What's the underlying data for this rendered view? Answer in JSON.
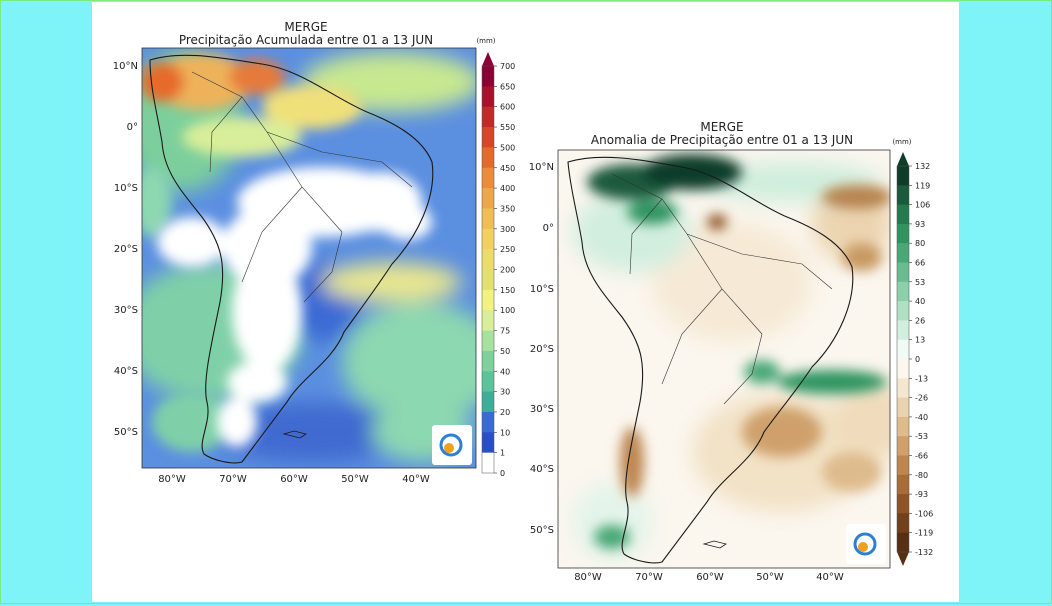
{
  "left_map": {
    "title": "MERGE",
    "subtitle": "Precipitação Acumulada entre 01 a  13 JUN",
    "unit": "(mm)",
    "lat_labels": [
      "10°N",
      "0°",
      "10°S",
      "20°S",
      "30°S",
      "40°S",
      "50°S"
    ],
    "lon_labels": [
      "80°W",
      "70°W",
      "60°W",
      "50°W",
      "40°W"
    ],
    "colorbar": {
      "ticks": [
        "700",
        "650",
        "600",
        "550",
        "500",
        "450",
        "400",
        "350",
        "300",
        "250",
        "200",
        "150",
        "100",
        "75",
        "50",
        "40",
        "30",
        "20",
        "10",
        "1",
        "0"
      ],
      "colors": [
        "#8b0033",
        "#a8102e",
        "#c22a2a",
        "#d8462a",
        "#e46a2c",
        "#ea8c3a",
        "#eea64a",
        "#f0bc56",
        "#f2d060",
        "#ecdc6c",
        "#e2e070",
        "#f2f280",
        "#d8ee9a",
        "#a8e0a0",
        "#7ed09c",
        "#5cc29a",
        "#3eae98",
        "#3a6ad4",
        "#2a4ec8",
        "#ffffff"
      ]
    }
  },
  "right_map": {
    "title": "MERGE",
    "subtitle": "Anomalia de Precipitação entre 01 a 13 JUN",
    "unit": "(mm)",
    "lat_labels": [
      "10°N",
      "0°",
      "10°S",
      "20°S",
      "30°S",
      "40°S",
      "50°S"
    ],
    "lon_labels": [
      "80°W",
      "70°W",
      "60°W",
      "50°W",
      "40°W"
    ],
    "colorbar": {
      "ticks": [
        "132",
        "119",
        "106",
        "93",
        "80",
        "66",
        "53",
        "40",
        "26",
        "13",
        "0",
        "-13",
        "-26",
        "-40",
        "-53",
        "-66",
        "-80",
        "-93",
        "-106",
        "-119",
        "-132"
      ],
      "colors": [
        "#0f3d2a",
        "#1b5a3c",
        "#237a4c",
        "#2e9460",
        "#4aa876",
        "#6abc90",
        "#8ccfa8",
        "#b0dfc4",
        "#d2eedf",
        "#f2faf6",
        "#fbf6ee",
        "#f4e6cf",
        "#ead2ae",
        "#debb8c",
        "#cfa06c",
        "#bd8550",
        "#a86c3a",
        "#8e5428",
        "#72401c",
        "#573014"
      ]
    }
  },
  "colors": {
    "outer_background": "#7ff4f8",
    "panel_background": "#ffffff"
  },
  "icons": [
    "inpe-logo-icon"
  ]
}
